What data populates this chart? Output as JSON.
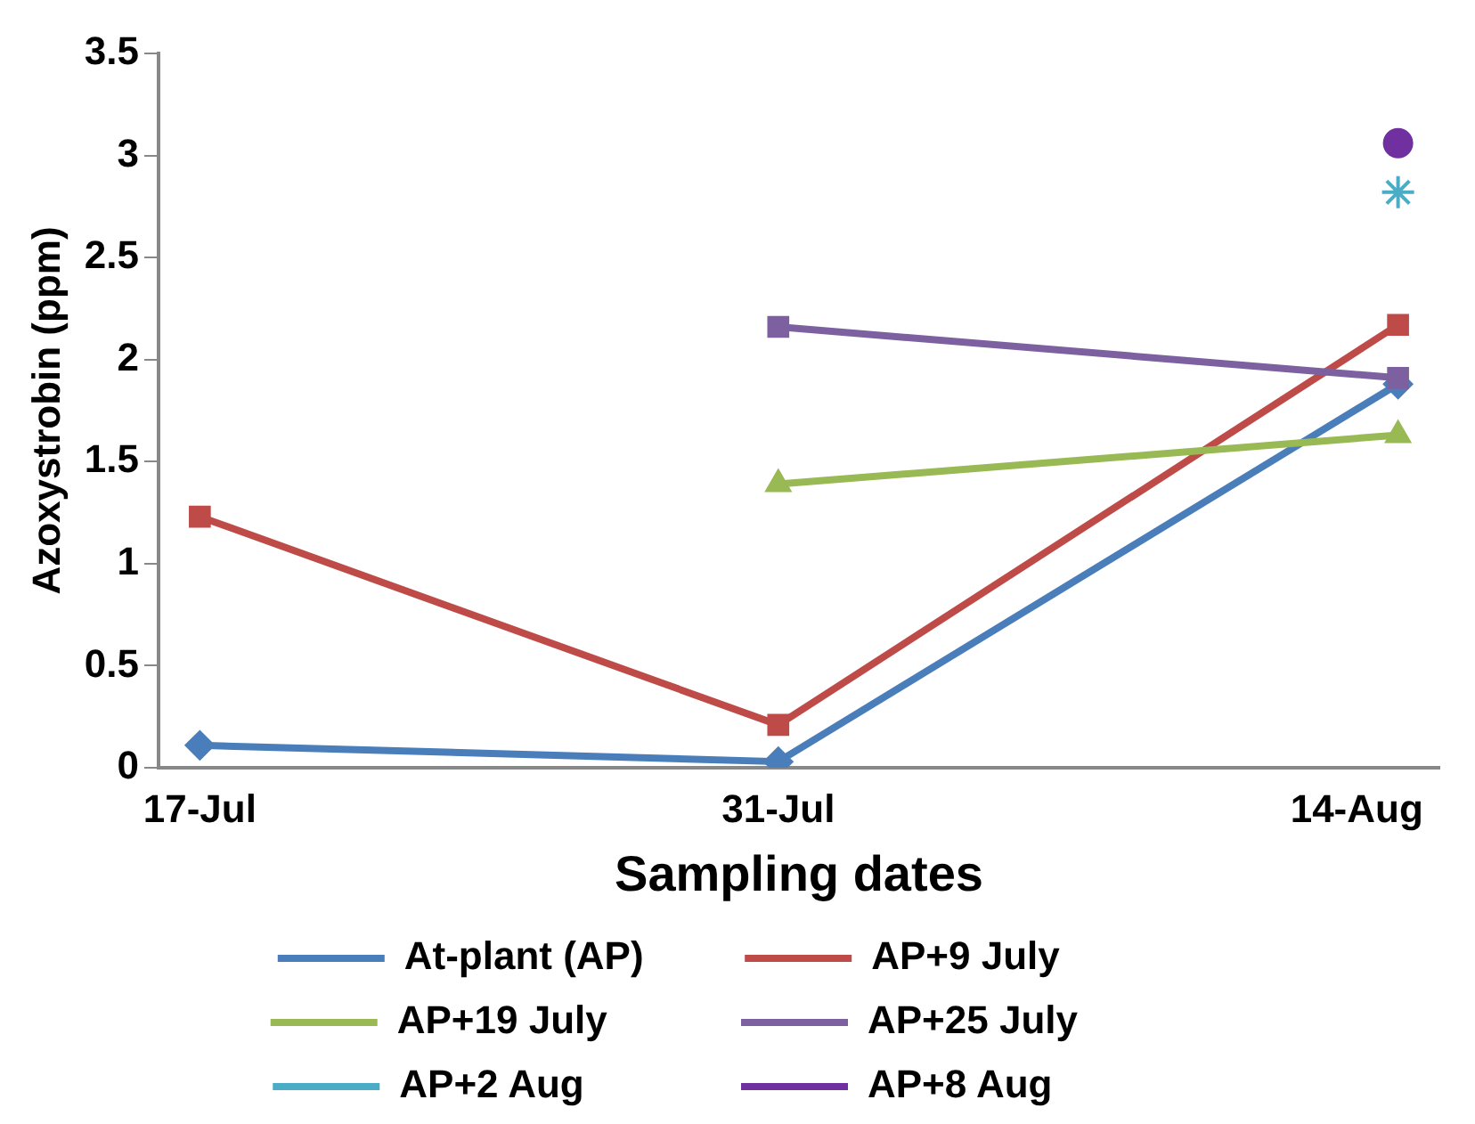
{
  "chart_data": {
    "type": "line",
    "xlabel": "Sampling dates",
    "ylabel": "Azoxystrobin (ppm)",
    "x": [
      "--07-17",
      "--07-31",
      "--08-15"
    ],
    "xlim": [
      "--07-16",
      "--08-16"
    ],
    "xticks": [
      {
        "value": "--07-17",
        "label": "17-Jul"
      },
      {
        "value": "--07-31",
        "label": "31-Jul"
      },
      {
        "value": "--08-14",
        "label": "14-Aug"
      }
    ],
    "ylim": [
      0,
      3.5
    ],
    "yticks": [
      0,
      0.5,
      1,
      1.5,
      2,
      2.5,
      3,
      3.5
    ],
    "grid": false,
    "legend": "bottom",
    "line_style": "solid",
    "series": [
      {
        "name": "At-plant (AP)",
        "color": "#4a7ebb",
        "marker": "diamond",
        "values": [
          0.11,
          0.03,
          1.88
        ]
      },
      {
        "name": "AP+9 July",
        "color": "#be4b48",
        "marker": "square",
        "values": [
          1.23,
          0.21,
          2.17
        ]
      },
      {
        "name": "AP+19 July",
        "color": "#98b954",
        "marker": "triangle",
        "values": [
          null,
          1.39,
          1.63
        ]
      },
      {
        "name": "AP+25 July",
        "color": "#7d60a0",
        "marker": "square",
        "values": [
          null,
          2.16,
          1.91
        ]
      },
      {
        "name": "AP+2 Aug",
        "color": "#4bacc6",
        "marker": "cross",
        "values": [
          null,
          null,
          2.82
        ]
      },
      {
        "name": "AP+8 Aug",
        "color": "#7030a0",
        "marker": "circle",
        "values": [
          null,
          null,
          3.06
        ]
      }
    ]
  }
}
